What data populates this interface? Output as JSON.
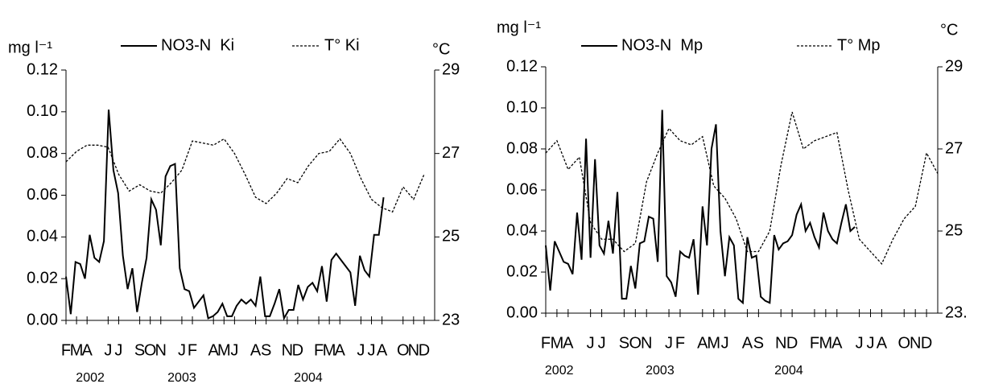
{
  "chart_data": [
    {
      "type": "line",
      "y_label": "mg l⁻¹",
      "y2_label": "°C",
      "xlim": [
        0,
        35
      ],
      "ylim": [
        0,
        0.12
      ],
      "y2lim": [
        23,
        29
      ],
      "xticks": [
        {
          "value": 0,
          "label": "F"
        },
        {
          "value": 1,
          "label": "M"
        },
        {
          "value": 2,
          "label": "A"
        },
        {
          "value": 4,
          "label": "J"
        },
        {
          "value": 5,
          "label": "J"
        },
        {
          "value": 7,
          "label": "S"
        },
        {
          "value": 8,
          "label": "O"
        },
        {
          "value": 9,
          "label": "N"
        },
        {
          "value": 11,
          "label": "J"
        },
        {
          "value": 12,
          "label": "F"
        },
        {
          "value": 14,
          "label": "A"
        },
        {
          "value": 15,
          "label": "M"
        },
        {
          "value": 16,
          "label": "J"
        },
        {
          "value": 18,
          "label": "A"
        },
        {
          "value": 19,
          "label": "S"
        },
        {
          "value": 21,
          "label": "N"
        },
        {
          "value": 22,
          "label": "D"
        },
        {
          "value": 24,
          "label": "F"
        },
        {
          "value": 25,
          "label": "M"
        },
        {
          "value": 26,
          "label": "A"
        },
        {
          "value": 28,
          "label": "J"
        },
        {
          "value": 29,
          "label": "J"
        },
        {
          "value": 30,
          "label": "A"
        },
        {
          "value": 32,
          "label": "O"
        },
        {
          "value": 33,
          "label": "N"
        },
        {
          "value": 34,
          "label": "D"
        }
      ],
      "year_ticks": [
        {
          "value": 2.3,
          "label": "2002"
        },
        {
          "value": 11,
          "label": "2003"
        },
        {
          "value": 23,
          "label": "2004"
        }
      ],
      "yticks": [
        {
          "value": 0,
          "label": "0.00"
        },
        {
          "value": 0.02,
          "label": "0.02"
        },
        {
          "value": 0.04,
          "label": "0.04"
        },
        {
          "value": 0.06,
          "label": "0.06"
        },
        {
          "value": 0.08,
          "label": "0.08"
        },
        {
          "value": 0.1,
          "label": "0.10"
        },
        {
          "value": 0.12,
          "label": "0.12"
        }
      ],
      "y2ticks": [
        23,
        25,
        27,
        29
      ],
      "series": [
        {
          "name": "NO3-N  Ki",
          "color": "#000000",
          "dash": "solid",
          "axis": "y",
          "x": [
            0,
            0.45,
            0.9,
            1.35,
            1.8,
            2.25,
            2.7,
            3.15,
            3.6,
            4.05,
            4.5,
            4.95,
            5.4,
            5.85,
            6.3,
            6.75,
            7.2,
            7.65,
            8.1,
            8.55,
            9,
            9.45,
            9.9,
            10.35,
            10.8,
            11.25,
            11.7,
            12.15,
            12.6,
            13.05,
            13.5,
            13.95,
            14.4,
            14.85,
            15.3,
            15.75,
            16.2,
            16.65,
            17.1,
            17.55,
            18,
            18.45,
            18.9,
            19.35,
            19.8,
            20.25,
            20.7,
            21.15,
            21.6,
            22.05,
            22.5,
            22.95,
            23.4,
            23.85,
            24.3,
            24.75,
            25.2,
            25.65,
            26.1,
            26.55,
            27,
            27.45,
            27.9,
            28.35,
            28.8,
            29.25,
            29.7,
            30.15
          ],
          "values": [
            0.021,
            0.003,
            0.028,
            0.027,
            0.02,
            0.041,
            0.03,
            0.028,
            0.038,
            0.101,
            0.072,
            0.061,
            0.031,
            0.015,
            0.025,
            0.004,
            0.018,
            0.03,
            0.058,
            0.053,
            0.036,
            0.069,
            0.074,
            0.075,
            0.025,
            0.015,
            0.014,
            0.006,
            0.009,
            0.012,
            0.001,
            0.002,
            0.004,
            0.008,
            0.002,
            0.002,
            0.007,
            0.01,
            0.008,
            0.01,
            0.007,
            0.021,
            0.002,
            0.002,
            0.008,
            0.015,
            0.001,
            0.005,
            0.005,
            0.017,
            0.01,
            0.016,
            0.018,
            0.014,
            0.026,
            0.009,
            0.029,
            0.032,
            0.029,
            0.026,
            0.023,
            0.007,
            0.031,
            0.024,
            0.021,
            0.041,
            0.041,
            0.059
          ]
        },
        {
          "name": "T° Ki",
          "color": "#000000",
          "dash": "dotted",
          "axis": "y2",
          "x": [
            0,
            1,
            2,
            3,
            4,
            5,
            6,
            7,
            8,
            9,
            10,
            11,
            12,
            13,
            14,
            15,
            16,
            17,
            18,
            19,
            20,
            21,
            22,
            23,
            24,
            25,
            26,
            27,
            28,
            29,
            30,
            31,
            32,
            33,
            34
          ],
          "values": [
            26.8,
            27.05,
            27.2,
            27.2,
            27.15,
            26.5,
            26.1,
            26.25,
            26.1,
            26.05,
            26.3,
            26.6,
            27.3,
            27.25,
            27.2,
            27.35,
            27.0,
            26.5,
            25.95,
            25.8,
            26.05,
            26.4,
            26.3,
            26.7,
            27.0,
            27.05,
            27.35,
            27.0,
            26.4,
            25.9,
            25.7,
            25.6,
            26.2,
            25.9,
            26.5
          ]
        }
      ]
    },
    {
      "type": "line",
      "y_label": "mg l⁻¹",
      "y2_label": "°C",
      "xlim": [
        0,
        35
      ],
      "ylim": [
        0,
        0.12
      ],
      "y2lim": [
        23,
        29
      ],
      "xticks": [
        {
          "value": 0,
          "label": "F"
        },
        {
          "value": 1,
          "label": "M"
        },
        {
          "value": 2,
          "label": "A"
        },
        {
          "value": 4,
          "label": "J"
        },
        {
          "value": 5,
          "label": "J"
        },
        {
          "value": 7,
          "label": "S"
        },
        {
          "value": 8,
          "label": "O"
        },
        {
          "value": 9,
          "label": "N"
        },
        {
          "value": 11,
          "label": "J"
        },
        {
          "value": 12,
          "label": "F"
        },
        {
          "value": 14,
          "label": "A"
        },
        {
          "value": 15,
          "label": "M"
        },
        {
          "value": 16,
          "label": "J"
        },
        {
          "value": 18,
          "label": "A"
        },
        {
          "value": 19,
          "label": "S"
        },
        {
          "value": 21,
          "label": "N"
        },
        {
          "value": 22,
          "label": "D"
        },
        {
          "value": 24,
          "label": "F"
        },
        {
          "value": 25,
          "label": "M"
        },
        {
          "value": 26,
          "label": "A"
        },
        {
          "value": 28,
          "label": "J"
        },
        {
          "value": 29,
          "label": "J"
        },
        {
          "value": 30,
          "label": "A"
        },
        {
          "value": 32,
          "label": "O"
        },
        {
          "value": 33,
          "label": "N"
        },
        {
          "value": 34,
          "label": "D"
        }
      ],
      "year_ticks": [
        {
          "value": 1.2,
          "label": "2002"
        },
        {
          "value": 10.2,
          "label": "2003"
        },
        {
          "value": 21.7,
          "label": "2004"
        }
      ],
      "yticks": [
        {
          "value": 0,
          "label": "0.00"
        },
        {
          "value": 0.02,
          "label": "0.02"
        },
        {
          "value": 0.04,
          "label": "0.04"
        },
        {
          "value": 0.06,
          "label": "0.06"
        },
        {
          "value": 0.08,
          "label": "0.08"
        },
        {
          "value": 0.1,
          "label": "0.10"
        },
        {
          "value": 0.12,
          "label": "0.12"
        }
      ],
      "y2ticks": [
        {
          "value": 23,
          "label": "23."
        },
        25,
        27,
        29
      ],
      "series": [
        {
          "name": "NO3-N  Mp",
          "color": "#000000",
          "dash": "solid",
          "axis": "y",
          "x": [
            0,
            0.4,
            0.8,
            1.2,
            1.6,
            2,
            2.4,
            2.8,
            3.2,
            3.6,
            4,
            4.4,
            4.8,
            5.2,
            5.6,
            6,
            6.4,
            6.8,
            7.2,
            7.6,
            8,
            8.4,
            8.8,
            9.2,
            9.6,
            10,
            10.4,
            10.8,
            11.2,
            11.6,
            12,
            12.4,
            12.8,
            13.2,
            13.6,
            14,
            14.4,
            14.8,
            15.2,
            15.6,
            16,
            16.4,
            16.8,
            17.2,
            17.6,
            18,
            18.4,
            18.8,
            19.2,
            19.6,
            20,
            20.4,
            20.8,
            21.2,
            21.6,
            22,
            22.4,
            22.8,
            23.2,
            23.6,
            24,
            24.4,
            24.8,
            25.2,
            25.6,
            26,
            26.4,
            26.8,
            27.2,
            27.6
          ],
          "values": [
            0.033,
            0.011,
            0.035,
            0.03,
            0.025,
            0.024,
            0.019,
            0.049,
            0.026,
            0.085,
            0.027,
            0.075,
            0.033,
            0.029,
            0.045,
            0.029,
            0.059,
            0.007,
            0.007,
            0.023,
            0.012,
            0.034,
            0.035,
            0.047,
            0.046,
            0.025,
            0.099,
            0.018,
            0.015,
            0.008,
            0.03,
            0.028,
            0.027,
            0.036,
            0.009,
            0.052,
            0.033,
            0.08,
            0.092,
            0.04,
            0.018,
            0.037,
            0.033,
            0.007,
            0.005,
            0.037,
            0.027,
            0.028,
            0.008,
            0.006,
            0.005,
            0.038,
            0.031,
            0.034,
            0.035,
            0.038,
            0.048,
            0.053,
            0.04,
            0.044,
            0.037,
            0.032,
            0.049,
            0.04,
            0.036,
            0.034,
            0.044,
            0.053,
            0.04,
            0.042
          ]
        },
        {
          "name": "T° Mp",
          "color": "#000000",
          "dash": "dotted",
          "axis": "y2",
          "x": [
            0,
            1,
            2,
            3,
            4,
            5,
            6,
            7,
            8,
            9,
            10,
            11,
            12,
            13,
            14,
            15,
            16,
            17,
            18,
            19,
            20,
            21,
            22,
            23,
            24,
            25,
            26,
            27,
            28,
            29,
            30,
            31,
            32,
            33,
            34,
            35
          ],
          "values": [
            26.9,
            27.2,
            26.5,
            26.8,
            25.2,
            24.8,
            24.8,
            24.5,
            24.7,
            26.2,
            26.9,
            27.5,
            27.2,
            27.1,
            27.3,
            26.1,
            25.8,
            25.3,
            24.5,
            24.5,
            25.0,
            26.6,
            27.9,
            27.0,
            27.2,
            27.3,
            27.4,
            26.0,
            24.8,
            24.5,
            24.2,
            24.8,
            25.3,
            25.6,
            26.9,
            26.4
          ]
        }
      ]
    }
  ]
}
